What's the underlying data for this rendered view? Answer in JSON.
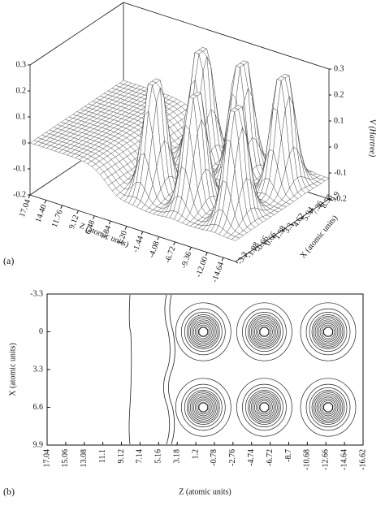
{
  "chart_data": [
    {
      "type": "surface",
      "panel_label": "(a)",
      "z_label": "Z (atomic units)",
      "x_label": "X (atomic units)",
      "v_label": "V (Hartree)",
      "zlim": [
        17.04,
        -16.62
      ],
      "xlim": [
        -3.3,
        9.9
      ],
      "vlim": [
        -0.2,
        0.3
      ],
      "zticks": [
        17.04,
        {
          "value": 14.4,
          "label": "14.40"
        },
        11.76,
        9.12,
        6.48,
        3.84,
        {
          "value": 1.2,
          "label": "1.20"
        },
        -1.44,
        -4.08,
        -6.72,
        -9.36,
        {
          "value": -12,
          "label": "-12.00"
        },
        -14.64
      ],
      "xticks": [
        9.9,
        8.58,
        7.26,
        5.94,
        4.62,
        3.3,
        1.98,
        0.66,
        -0.66,
        -1.98,
        -3.3
      ],
      "vticks": [
        0.3,
        0.2,
        0.1,
        0,
        -0.1,
        -0.2
      ]
    },
    {
      "type": "contour",
      "panel_label": "(b)",
      "xlabel": "Z (atomic units)",
      "ylabel": "X (atomic units)",
      "xlim": [
        17.04,
        -16.62
      ],
      "ylim": [
        -3.3,
        9.9
      ],
      "xticks": [
        17.04,
        15.06,
        13.08,
        11.1,
        9.12,
        7.14,
        5.16,
        3.18,
        1.2,
        -0.78,
        -2.76,
        -4.74,
        -6.72,
        -8.7,
        -10.68,
        -12.66,
        -14.64,
        -16.62
      ],
      "yticks": [
        -3.3,
        0,
        3.3,
        6.6,
        9.9
      ],
      "wells": [
        {
          "z": 0.4,
          "x": 0
        },
        {
          "z": -6.1,
          "x": 0
        },
        {
          "z": -12.9,
          "x": 0
        },
        {
          "z": 0.4,
          "x": 6.6
        },
        {
          "z": -6.1,
          "x": 6.6
        },
        {
          "z": -12.9,
          "x": 6.6
        }
      ]
    }
  ]
}
